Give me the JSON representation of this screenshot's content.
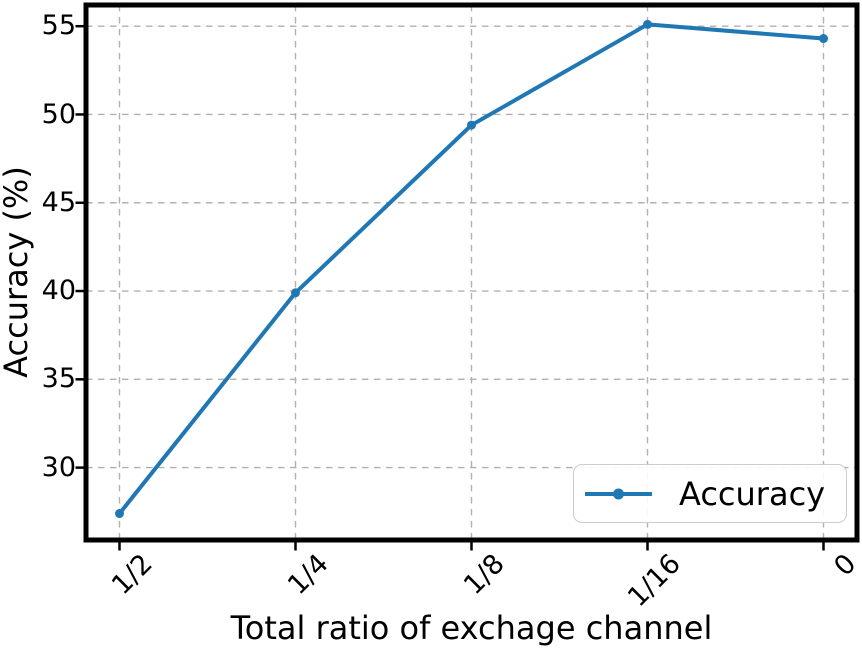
{
  "chart_data": {
    "type": "line",
    "title": "",
    "xlabel": "Total ratio of exchage channel",
    "ylabel": "Accuracy (%)",
    "categories": [
      "1/2",
      "1/4",
      "1/8",
      "1/16",
      "0"
    ],
    "series": [
      {
        "name": "Accuracy",
        "values": [
          27.4,
          39.9,
          49.4,
          55.1,
          54.3
        ]
      }
    ],
    "yticks": [
      30,
      35,
      40,
      45,
      50,
      55
    ],
    "ylim": [
      25.9,
      56.2
    ],
    "grid": true,
    "grid_style": "dashed",
    "x_tick_rotation": 45,
    "marker": "circle",
    "legend": {
      "position": "lower right",
      "entries": [
        "Accuracy"
      ]
    }
  },
  "colors": {
    "line": "#1f77b4",
    "marker": "#1f77b4",
    "grid": "#b0b0b0",
    "spine": "#000000",
    "text": "#000000",
    "legend_border": "#cccccc",
    "background": "#ffffff"
  }
}
